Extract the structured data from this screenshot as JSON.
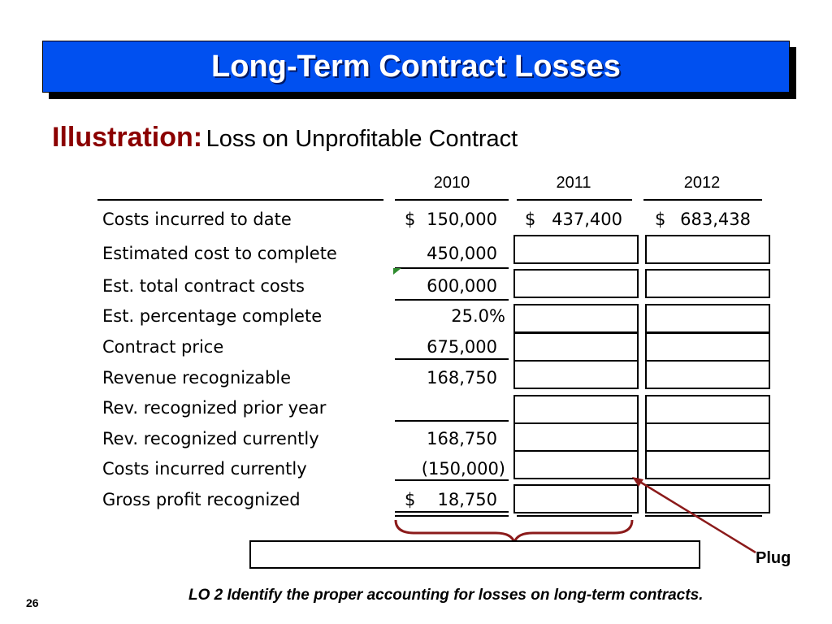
{
  "slide": {
    "title": "Long-Term Contract Losses",
    "subtitle_lead": "Illustration:",
    "subtitle_rest": "Loss on Unprofitable Contract",
    "page_number": "26",
    "learning_objective": "LO 2  Identify the proper accounting for losses on long-term contracts.",
    "plug_label": "Plug",
    "colors": {
      "title_bg": "#0050f0",
      "lead_text": "#8b0000",
      "arrow": "#8b1a1a"
    }
  },
  "table": {
    "years": [
      "2010",
      "2011",
      "2012"
    ],
    "rows": [
      {
        "label": "Costs incurred to date",
        "v2010": "150,000",
        "v2011": "437,400",
        "v2012": "683,438"
      },
      {
        "label": "Estimated cost to complete",
        "v2010": "450,000"
      },
      {
        "label": "Est. total contract costs",
        "v2010": "600,000"
      },
      {
        "label": "Est. percentage complete",
        "v2010": "25.0%"
      },
      {
        "label": "Contract price",
        "v2010": "675,000"
      },
      {
        "label": "Revenue recognizable",
        "v2010": "168,750"
      },
      {
        "label": "Rev. recognized prior year",
        "v2010": ""
      },
      {
        "label": "Rev. recognized currently",
        "v2010": "168,750"
      },
      {
        "label": "Costs incurred currently",
        "v2010": "(150,000)"
      },
      {
        "label": "Gross profit recognized",
        "v2010": "18,750"
      }
    ],
    "currency_symbol": "$"
  }
}
